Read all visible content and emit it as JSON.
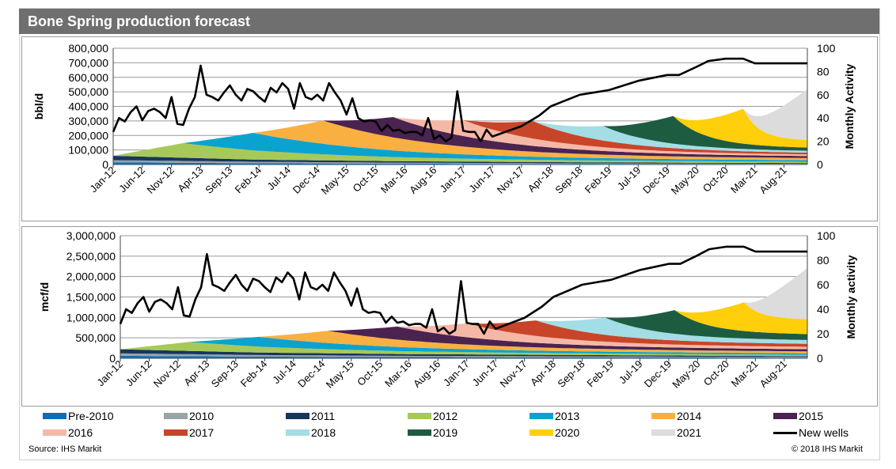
{
  "title": "Bone Spring production forecast",
  "source": "Source: IHS Markit",
  "copyright": "© 2018 IHS Markit",
  "chart_data": [
    {
      "type": "area",
      "stacked": true,
      "ylabel": "bbl/d",
      "y2label": "Monthly Activity",
      "ylim": [
        0,
        800000
      ],
      "y2lim": [
        0,
        100
      ],
      "yticks": [
        "0",
        "100,000",
        "200,000",
        "300,000",
        "400,000",
        "500,000",
        "600,000",
        "700,000",
        "800,000"
      ],
      "y2ticks": [
        "0",
        "20",
        "40",
        "60",
        "80",
        "100"
      ],
      "x_start": "Jan-12",
      "x_end": "Dec-21",
      "xticks": [
        "Jan-12",
        "Jun-12",
        "Nov-12",
        "Apr-13",
        "Sep-13",
        "Feb-14",
        "Jul-14",
        "Dec-14",
        "May-15",
        "Oct-15",
        "Mar-16",
        "Aug-16",
        "Jan-17",
        "Jun-17",
        "Nov-17",
        "Apr-18",
        "Sep-18",
        "Feb-19",
        "Jul-19",
        "Dec-19",
        "May-20",
        "Oct-20",
        "Mar-21",
        "Aug-21"
      ],
      "grid": "horizontal",
      "series": [
        {
          "name": "Pre-2010",
          "color": "#0f6db3",
          "x": [
            "Jan-12",
            "Jan-14",
            "Jan-16",
            "Jan-18",
            "Jan-20",
            "Dec-21"
          ],
          "values": [
            15000,
            9000,
            6000,
            4000,
            3000,
            2000
          ]
        },
        {
          "name": "2010",
          "color": "#9aa3a8",
          "x": [
            "Jan-12",
            "Jan-14",
            "Jan-16",
            "Jan-18",
            "Jan-20",
            "Dec-21"
          ],
          "values": [
            15000,
            10000,
            7000,
            5000,
            4000,
            3000
          ]
        },
        {
          "name": "2011",
          "color": "#17365c",
          "x": [
            "Jan-12",
            "Jan-14",
            "Jan-16",
            "Jan-18",
            "Jan-20",
            "Dec-21"
          ],
          "values": [
            30000,
            15000,
            10000,
            8000,
            6000,
            5000
          ]
        },
        {
          "name": "2012",
          "color": "#a7c957",
          "start": "Jan-12",
          "peak": "Jan-13",
          "end": "Dec-21",
          "values": [
            100000,
            25000,
            8000
          ]
        },
        {
          "name": "2013",
          "color": "#0aa3cf",
          "start": "Jan-13",
          "peak": "Jan-14",
          "end": "Dec-21",
          "values": [
            120000,
            30000,
            10000
          ]
        },
        {
          "name": "2014",
          "color": "#f9b041",
          "start": "Jan-14",
          "peak": "Jan-15",
          "end": "Dec-21",
          "values": [
            160000,
            40000,
            13000
          ]
        },
        {
          "name": "2015",
          "color": "#4a2350",
          "start": "Jan-15",
          "peak": "Jan-16",
          "end": "Dec-21",
          "values": [
            140000,
            38000,
            12000
          ]
        },
        {
          "name": "2016",
          "color": "#f6b8a6",
          "start": "Jan-16",
          "peak": "Jan-17",
          "end": "Dec-21",
          "values": [
            110000,
            30000,
            10000
          ]
        },
        {
          "name": "2017",
          "color": "#c8452a",
          "start": "Jan-17",
          "peak": "Jan-18",
          "end": "Dec-21",
          "values": [
            120000,
            32000,
            11000
          ]
        },
        {
          "name": "2018",
          "color": "#a3dde6",
          "start": "Jan-18",
          "peak": "Jan-19",
          "end": "Dec-21",
          "values": [
            100000,
            30000,
            12000
          ]
        },
        {
          "name": "2019",
          "color": "#1e5c42",
          "start": "Jan-19",
          "peak": "Jan-20",
          "end": "Dec-21",
          "values": [
            190000,
            50000,
            20000
          ]
        },
        {
          "name": "2020",
          "color": "#fecf0a",
          "start": "Jan-20",
          "peak": "Jan-21",
          "end": "Dec-21",
          "values": [
            240000,
            80000,
            50000
          ]
        },
        {
          "name": "2021",
          "color": "#dcdcdc",
          "start": "Jan-21",
          "peak": "Dec-21",
          "end": "Dec-21",
          "values": [
            350000,
            350000,
            350000
          ]
        }
      ],
      "line_series": {
        "name": "New wells",
        "axis": "secondary",
        "color": "#000000",
        "x": [
          "Jan-12",
          "Feb-12",
          "Mar-12",
          "Apr-12",
          "May-12",
          "Jun-12",
          "Jul-12",
          "Aug-12",
          "Sep-12",
          "Oct-12",
          "Nov-12",
          "Dec-12",
          "Jan-13",
          "Feb-13",
          "Mar-13",
          "Apr-13",
          "May-13",
          "Jun-13",
          "Jul-13",
          "Aug-13",
          "Sep-13",
          "Oct-13",
          "Nov-13",
          "Dec-13",
          "Jan-14",
          "Feb-14",
          "Mar-14",
          "Apr-14",
          "May-14",
          "Jun-14",
          "Jul-14",
          "Aug-14",
          "Sep-14",
          "Oct-14",
          "Nov-14",
          "Dec-14",
          "Jan-15",
          "Feb-15",
          "Mar-15",
          "Apr-15",
          "May-15",
          "Jun-15",
          "Jul-15",
          "Aug-15",
          "Sep-15",
          "Oct-15",
          "Nov-15",
          "Dec-15",
          "Jan-16",
          "Feb-16",
          "Mar-16",
          "Apr-16",
          "May-16",
          "Jun-16",
          "Jul-16",
          "Aug-16",
          "Sep-16",
          "Oct-16",
          "Nov-16",
          "Dec-16",
          "Jan-17",
          "Feb-17",
          "Mar-17",
          "Apr-17",
          "May-17",
          "Jun-17",
          "Nov-17",
          "Feb-18",
          "Apr-18",
          "Jun-18",
          "Sep-18",
          "Feb-19",
          "Jul-19",
          "Sep-19",
          "Dec-19",
          "Feb-20",
          "May-20",
          "Jul-20",
          "Oct-20",
          "Dec-20",
          "Jan-21",
          "Mar-21",
          "Dec-21"
        ],
        "values": [
          28,
          40,
          37,
          45,
          50,
          38,
          46,
          48,
          45,
          40,
          58,
          35,
          34,
          48,
          58,
          85,
          60,
          58,
          55,
          62,
          68,
          60,
          55,
          65,
          63,
          58,
          54,
          66,
          62,
          70,
          65,
          48,
          70,
          58,
          56,
          60,
          55,
          70,
          62,
          55,
          43,
          57,
          40,
          37,
          38,
          37,
          29,
          34,
          29,
          30,
          27,
          28,
          28,
          25,
          40,
          22,
          25,
          20,
          23,
          63,
          29,
          28,
          28,
          20,
          30,
          24,
          33,
          42,
          50,
          54,
          60,
          64,
          72,
          74,
          77,
          77,
          84,
          89,
          91,
          91,
          91,
          87,
          87
        ]
      }
    },
    {
      "type": "area",
      "stacked": true,
      "ylabel": "mcf/d",
      "y2label": "Monthly activity",
      "ylim": [
        0,
        3000000
      ],
      "y2lim": [
        0,
        100
      ],
      "yticks": [
        "0",
        "500,000",
        "1,000,000",
        "1,500,000",
        "2,000,000",
        "2,500,000",
        "3,000,000"
      ],
      "y2ticks": [
        "0",
        "20",
        "40",
        "60",
        "80",
        "100"
      ],
      "x_start": "Jan-12",
      "x_end": "Dec-21",
      "xticks": [
        "Jan-12",
        "Jun-12",
        "Nov-12",
        "Apr-13",
        "Sep-13",
        "Feb-14",
        "Jul-14",
        "Dec-14",
        "May-15",
        "Oct-15",
        "Mar-16",
        "Aug-16",
        "Jan-17",
        "Jun-17",
        "Nov-17",
        "Apr-18",
        "Sep-18",
        "Feb-19",
        "Jul-19",
        "Dec-19",
        "May-20",
        "Oct-20",
        "Mar-21",
        "Aug-21"
      ],
      "grid": "horizontal",
      "series": [
        {
          "name": "Pre-2010",
          "color": "#0f6db3",
          "x": [
            "Jan-12",
            "Jan-14",
            "Jan-16",
            "Jan-18",
            "Jan-20",
            "Dec-21"
          ],
          "values": [
            60000,
            40000,
            30000,
            25000,
            20000,
            15000
          ]
        },
        {
          "name": "2010",
          "color": "#9aa3a8",
          "x": [
            "Jan-12",
            "Jan-14",
            "Jan-16",
            "Jan-18",
            "Jan-20",
            "Dec-21"
          ],
          "values": [
            60000,
            40000,
            30000,
            25000,
            20000,
            15000
          ]
        },
        {
          "name": "2011",
          "color": "#17365c",
          "x": [
            "Jan-12",
            "Jan-14",
            "Jan-16",
            "Jan-18",
            "Jan-20",
            "Dec-21"
          ],
          "values": [
            100000,
            60000,
            45000,
            35000,
            28000,
            22000
          ]
        },
        {
          "name": "2012",
          "color": "#a7c957",
          "start": "Jan-12",
          "peak": "Jan-13",
          "end": "Dec-21",
          "values": [
            220000,
            70000,
            30000
          ]
        },
        {
          "name": "2013",
          "color": "#0aa3cf",
          "start": "Jan-13",
          "peak": "Jan-14",
          "end": "Dec-21",
          "values": [
            240000,
            80000,
            35000
          ]
        },
        {
          "name": "2014",
          "color": "#f9b041",
          "start": "Jan-14",
          "peak": "Jan-15",
          "end": "Dec-21",
          "values": [
            300000,
            100000,
            45000
          ]
        },
        {
          "name": "2015",
          "color": "#4a2350",
          "start": "Jan-15",
          "peak": "Jan-16",
          "end": "Dec-21",
          "values": [
            320000,
            110000,
            50000
          ]
        },
        {
          "name": "2016",
          "color": "#f6b8a6",
          "start": "Jan-16",
          "peak": "Jan-17",
          "end": "Dec-21",
          "values": [
            340000,
            120000,
            55000
          ]
        },
        {
          "name": "2017",
          "color": "#c8452a",
          "start": "Jan-17",
          "peak": "Jan-18",
          "end": "Dec-21",
          "values": [
            380000,
            140000,
            70000
          ]
        },
        {
          "name": "2018",
          "color": "#a3dde6",
          "start": "Jan-18",
          "peak": "Jan-19",
          "end": "Dec-21",
          "values": [
            420000,
            170000,
            90000
          ]
        },
        {
          "name": "2019",
          "color": "#1e5c42",
          "start": "Jan-19",
          "peak": "Jan-20",
          "end": "Dec-21",
          "values": [
            580000,
            250000,
            140000
          ]
        },
        {
          "name": "2020",
          "color": "#fecf0a",
          "start": "Jan-20",
          "peak": "Jan-21",
          "end": "Dec-21",
          "values": [
            700000,
            450000,
            360000
          ]
        },
        {
          "name": "2021",
          "color": "#dcdcdc",
          "start": "Jan-21",
          "peak": "Dec-21",
          "end": "Dec-21",
          "values": [
            1250000,
            1250000,
            1250000
          ]
        }
      ],
      "line_series": {
        "name": "New wells",
        "axis": "secondary",
        "color": "#000000",
        "x": [
          "Jan-12",
          "Feb-12",
          "Mar-12",
          "Apr-12",
          "May-12",
          "Jun-12",
          "Jul-12",
          "Aug-12",
          "Sep-12",
          "Oct-12",
          "Nov-12",
          "Dec-12",
          "Jan-13",
          "Feb-13",
          "Mar-13",
          "Apr-13",
          "May-13",
          "Jun-13",
          "Jul-13",
          "Aug-13",
          "Sep-13",
          "Oct-13",
          "Nov-13",
          "Dec-13",
          "Jan-14",
          "Feb-14",
          "Mar-14",
          "Apr-14",
          "May-14",
          "Jun-14",
          "Jul-14",
          "Aug-14",
          "Sep-14",
          "Oct-14",
          "Nov-14",
          "Dec-14",
          "Jan-15",
          "Feb-15",
          "Mar-15",
          "Apr-15",
          "May-15",
          "Jun-15",
          "Jul-15",
          "Aug-15",
          "Sep-15",
          "Oct-15",
          "Nov-15",
          "Dec-15",
          "Jan-16",
          "Feb-16",
          "Mar-16",
          "Apr-16",
          "May-16",
          "Jun-16",
          "Jul-16",
          "Aug-16",
          "Sep-16",
          "Oct-16",
          "Nov-16",
          "Dec-16",
          "Jan-17",
          "Feb-17",
          "Mar-17",
          "Apr-17",
          "May-17",
          "Jun-17",
          "Nov-17",
          "Feb-18",
          "Apr-18",
          "Jun-18",
          "Sep-18",
          "Feb-19",
          "Jul-19",
          "Sep-19",
          "Dec-19",
          "Feb-20",
          "May-20",
          "Jul-20",
          "Oct-20",
          "Dec-20",
          "Jan-21",
          "Mar-21",
          "Dec-21"
        ],
        "values": [
          28,
          40,
          37,
          45,
          50,
          38,
          46,
          48,
          45,
          40,
          58,
          35,
          34,
          48,
          58,
          85,
          60,
          58,
          55,
          62,
          68,
          60,
          55,
          65,
          63,
          58,
          54,
          66,
          62,
          70,
          65,
          48,
          70,
          58,
          56,
          60,
          55,
          70,
          62,
          55,
          43,
          57,
          40,
          37,
          38,
          37,
          29,
          34,
          29,
          30,
          27,
          28,
          28,
          25,
          40,
          22,
          25,
          20,
          23,
          63,
          29,
          28,
          28,
          20,
          30,
          24,
          33,
          42,
          50,
          54,
          60,
          64,
          72,
          74,
          77,
          77,
          84,
          89,
          91,
          91,
          91,
          87,
          87
        ]
      }
    }
  ],
  "legend": [
    {
      "label": "Pre-2010",
      "color": "#0f6db3",
      "kind": "swatch"
    },
    {
      "label": "2010",
      "color": "#9aa3a8",
      "kind": "swatch"
    },
    {
      "label": "2011",
      "color": "#17365c",
      "kind": "swatch"
    },
    {
      "label": "2012",
      "color": "#a7c957",
      "kind": "swatch"
    },
    {
      "label": "2013",
      "color": "#0aa3cf",
      "kind": "swatch"
    },
    {
      "label": "2014",
      "color": "#f9b041",
      "kind": "swatch"
    },
    {
      "label": "2015",
      "color": "#4a2350",
      "kind": "swatch"
    },
    {
      "label": "2016",
      "color": "#f6b8a6",
      "kind": "swatch"
    },
    {
      "label": "2017",
      "color": "#c8452a",
      "kind": "swatch"
    },
    {
      "label": "2018",
      "color": "#a3dde6",
      "kind": "swatch"
    },
    {
      "label": "2019",
      "color": "#1e5c42",
      "kind": "swatch"
    },
    {
      "label": "2020",
      "color": "#fecf0a",
      "kind": "swatch"
    },
    {
      "label": "2021",
      "color": "#dcdcdc",
      "kind": "swatch"
    },
    {
      "label": "New wells",
      "color": "#000000",
      "kind": "line"
    }
  ]
}
